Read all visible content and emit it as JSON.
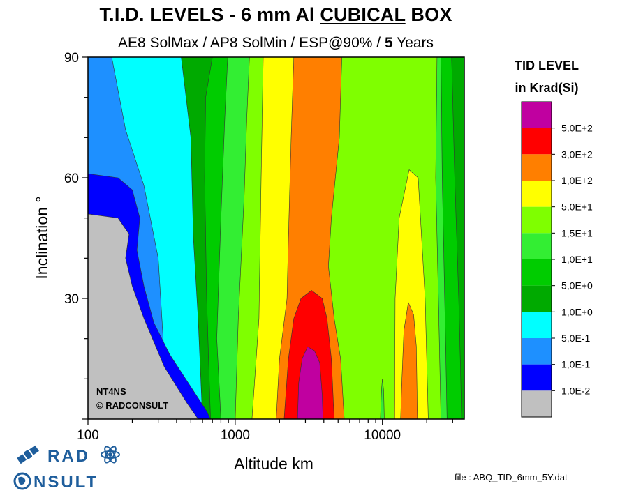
{
  "title": {
    "prefix": "T.I.D. LEVELS - 6 mm Al ",
    "underlined": "CUBICAL",
    "suffix": " BOX"
  },
  "subtitle": {
    "prefix": "AE8 SolMax / AP8 SolMin / ESP@90% / ",
    "years_bold": "5",
    "suffix": " Years"
  },
  "annotation": {
    "line1": "NT4NS",
    "line2": "© RADCONSULT"
  },
  "file_label": "file : ABQ_TID_6mm_5Y.dat",
  "logo": {
    "word1": "RAD",
    "word2": "C",
    "word2_rest": "NSULT"
  },
  "colors": {
    "brand_blue": "#1f5e9c",
    "grey": "#c0c0c0"
  },
  "chart_data": {
    "type": "heatmap",
    "subtype": "filled-contour",
    "xlabel": "Altitude km",
    "ylabel": "Inclination °",
    "x_scale": "log",
    "xlim": [
      100,
      36000
    ],
    "ylim": [
      0,
      90
    ],
    "x_ticks": [
      {
        "value": 100,
        "label": "100"
      },
      {
        "value": 1000,
        "label": "1000"
      },
      {
        "value": 10000,
        "label": "10000"
      }
    ],
    "y_ticks": [
      {
        "value": 30,
        "label": "30"
      },
      {
        "value": 60,
        "label": "60"
      },
      {
        "value": 90,
        "label": "90"
      }
    ],
    "legend": {
      "title_line1": "TID LEVEL",
      "title_line2": "in Krad(Si)",
      "placement": "right",
      "levels": [
        {
          "label": "5,0E+2",
          "color": "#c000a0"
        },
        {
          "label": "3,0E+2",
          "color": "#ff0000"
        },
        {
          "label": "1,0E+2",
          "color": "#ff7f00"
        },
        {
          "label": "5,0E+1",
          "color": "#ffff00"
        },
        {
          "label": "1,5E+1",
          "color": "#7fff00"
        },
        {
          "label": "1,0E+1",
          "color": "#33ee33"
        },
        {
          "label": "5,0E+0",
          "color": "#00cc00"
        },
        {
          "label": "1,0E+0",
          "color": "#00aa00"
        },
        {
          "label": "5,0E-1",
          "color": "#00ffff"
        },
        {
          "label": "1,0E-1",
          "color": "#1e90ff"
        },
        {
          "label": "1,0E-2",
          "color": "#0000ff"
        },
        {
          "label": "",
          "color": "#c0c0c0"
        }
      ]
    },
    "regions": [
      {
        "level": "bg",
        "color": "#1e90ff",
        "pts": [
          [
            100,
            0
          ],
          [
            36000,
            0
          ],
          [
            36000,
            90
          ],
          [
            100,
            90
          ]
        ]
      },
      {
        "level": "0.5",
        "color": "#00ffff",
        "pts": [
          [
            145,
            90
          ],
          [
            200,
            90
          ],
          [
            290,
            90
          ],
          [
            430,
            90
          ],
          [
            530,
            90
          ],
          [
            600,
            0
          ],
          [
            350,
            0
          ],
          [
            300,
            40
          ],
          [
            240,
            58
          ],
          [
            180,
            72
          ]
        ]
      },
      {
        "level": "1",
        "color": "#00aa00",
        "pts": [
          [
            430,
            90
          ],
          [
            36000,
            90
          ],
          [
            36000,
            0
          ],
          [
            600,
            0
          ],
          [
            560,
            25
          ],
          [
            520,
            45
          ],
          [
            500,
            70
          ]
        ]
      },
      {
        "level": "5",
        "color": "#00cc00",
        "pts": [
          [
            700,
            90
          ],
          [
            29500,
            90
          ],
          [
            31000,
            60
          ],
          [
            33000,
            30
          ],
          [
            33800,
            15
          ],
          [
            34500,
            0
          ],
          [
            680,
            0
          ],
          [
            640,
            30
          ],
          [
            620,
            60
          ],
          [
            630,
            80
          ]
        ]
      },
      {
        "level": "10",
        "color": "#33ee33",
        "pts": [
          [
            890,
            90
          ],
          [
            25000,
            90
          ],
          [
            25500,
            60
          ],
          [
            26500,
            30
          ],
          [
            27500,
            0
          ],
          [
            800,
            0
          ],
          [
            750,
            20
          ],
          [
            800,
            50
          ],
          [
            850,
            75
          ]
        ]
      },
      {
        "level": "15",
        "color": "#7fff00",
        "pts": [
          [
            1250,
            90
          ],
          [
            23500,
            90
          ],
          [
            23000,
            60
          ],
          [
            24000,
            30
          ],
          [
            25000,
            0
          ],
          [
            1000,
            0
          ],
          [
            1050,
            25
          ],
          [
            1150,
            55
          ],
          [
            1200,
            75
          ]
        ]
      },
      {
        "level": "50",
        "color": "#ffff00",
        "pts": [
          [
            1550,
            90
          ],
          [
            2950,
            90
          ],
          [
            2800,
            60
          ],
          [
            2550,
            30
          ],
          [
            2700,
            0
          ],
          [
            1300,
            0
          ],
          [
            1450,
            25
          ],
          [
            1500,
            60
          ]
        ]
      },
      {
        "level": "50b",
        "color": "#ffff00",
        "pts": [
          [
            20500,
            0
          ],
          [
            19500,
            30
          ],
          [
            17500,
            60
          ],
          [
            15200,
            62
          ],
          [
            13000,
            50
          ],
          [
            12200,
            30
          ],
          [
            12100,
            0
          ]
        ]
      },
      {
        "level": "100",
        "color": "#ff7f00",
        "pts": [
          [
            2500,
            90
          ],
          [
            5300,
            90
          ],
          [
            5100,
            70
          ],
          [
            4500,
            50
          ],
          [
            4300,
            38
          ],
          [
            4700,
            25
          ],
          [
            5200,
            15
          ],
          [
            5500,
            0
          ],
          [
            1900,
            0
          ],
          [
            2000,
            15
          ],
          [
            2250,
            30
          ],
          [
            2300,
            45
          ],
          [
            2400,
            70
          ]
        ]
      },
      {
        "level": "100b",
        "color": "#ff7f00",
        "pts": [
          [
            17300,
            0
          ],
          [
            17000,
            18
          ],
          [
            16300,
            26
          ],
          [
            15000,
            29
          ],
          [
            14000,
            22
          ],
          [
            13500,
            8
          ],
          [
            13300,
            0
          ]
        ]
      },
      {
        "level": "300",
        "color": "#ff0000",
        "pts": [
          [
            2150,
            0
          ],
          [
            2300,
            15
          ],
          [
            2500,
            25
          ],
          [
            2800,
            30
          ],
          [
            3300,
            32
          ],
          [
            3900,
            30
          ],
          [
            4200,
            25
          ],
          [
            4500,
            15
          ],
          [
            4700,
            0
          ]
        ]
      },
      {
        "level": "500",
        "color": "#c000a0",
        "pts": [
          [
            2650,
            0
          ],
          [
            2700,
            9
          ],
          [
            2850,
            15
          ],
          [
            3100,
            18
          ],
          [
            3450,
            17
          ],
          [
            3750,
            14
          ],
          [
            3900,
            6
          ],
          [
            3950,
            0
          ]
        ]
      },
      {
        "level": "0.1",
        "color": "#0000ff",
        "pts": [
          [
            100,
            61
          ],
          [
            160,
            60
          ],
          [
            200,
            57
          ],
          [
            225,
            50
          ],
          [
            215,
            42
          ],
          [
            240,
            33
          ],
          [
            280,
            24
          ],
          [
            360,
            16
          ],
          [
            500,
            8
          ],
          [
            640,
            2
          ],
          [
            680,
            0
          ],
          [
            100,
            0
          ]
        ]
      },
      {
        "level": "0.01",
        "color": "#c0c0c0",
        "pts": [
          [
            100,
            51
          ],
          [
            160,
            50
          ],
          [
            190,
            46
          ],
          [
            180,
            40
          ],
          [
            200,
            33
          ],
          [
            240,
            25
          ],
          [
            330,
            13
          ],
          [
            470,
            4
          ],
          [
            560,
            0
          ],
          [
            100,
            0
          ]
        ]
      },
      {
        "level": "10b",
        "color": "#33ee33",
        "pts": [
          [
            9700,
            0
          ],
          [
            9850,
            7
          ],
          [
            10000,
            10
          ],
          [
            10200,
            7
          ],
          [
            10300,
            0
          ]
        ]
      }
    ]
  }
}
